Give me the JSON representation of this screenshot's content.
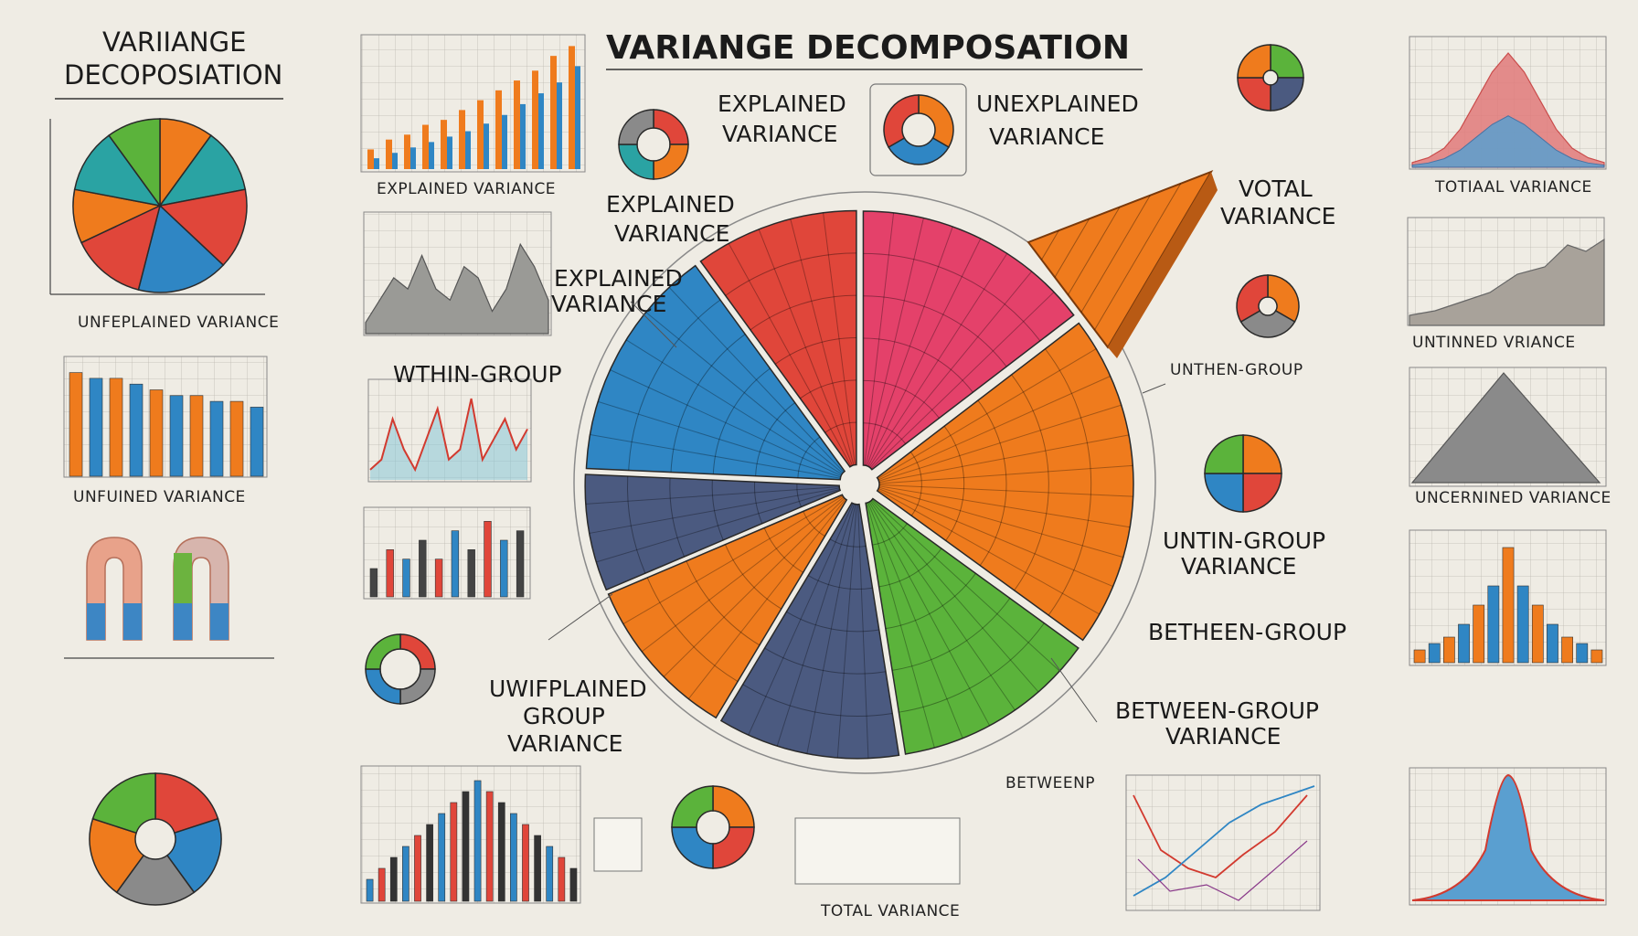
{
  "titles": {
    "main": "VARIANGE DECOMPOSATION",
    "left_line1": "VARIIANGE",
    "left_line2": "DECOPOSIATION"
  },
  "labels": {
    "explained_top": [
      "EXPLAINED",
      "VARIANCE"
    ],
    "unexplained_top": [
      "UNEXPLAINED",
      "VARIANCE"
    ],
    "explained_mid": [
      "EXPLAINED",
      "VARIANCE"
    ],
    "explained_low": [
      "EXPLAINED",
      "VARIANCE"
    ],
    "within_group": "WTHIN-GROUP",
    "votal": [
      "VOTAL",
      "VARIANCE"
    ],
    "unthen_group": "UNTHEN-GROUP",
    "untin_group": [
      "UNTIN-GROUP",
      "VARIANCE"
    ],
    "between_group_1": "BETHEEN-GROUP",
    "between_group_2": [
      "BETWEEN-GROUP",
      "VARIANCE"
    ],
    "uwifplained": [
      "UWIFPLAINED",
      "GROUP",
      "VARIANCE"
    ],
    "betweenp": "BETWEENP",
    "total_bottom": "TOTAL VARIANCE"
  },
  "captions": {
    "left_pie": "UNFEPLAINED VARIANCE",
    "left_bars": "UNFUINED VARIANCE",
    "mini_bar": "EXPLAINED VARIANCE",
    "right_top": "TOTIAAL VARIANCE",
    "right_2": "UNTINNED VRIANCE",
    "right_3": "UNCERNINED VARIANCE"
  },
  "colors": {
    "blue": "#2f86c4",
    "orange": "#ef7b1d",
    "red": "#e0463a",
    "green": "#5bb33b",
    "pink": "#e4416a",
    "slate": "#4b5a80",
    "teal": "#2aa3a3",
    "gray": "#8a8a8a"
  },
  "chart_data": [
    {
      "type": "pie",
      "id": "center-pie",
      "slices": [
        {
          "color": "pink",
          "value": 14.6
        },
        {
          "color": "orange",
          "value": 20.4
        },
        {
          "color": "green",
          "value": 12.5
        },
        {
          "color": "slate",
          "value": 11.1
        },
        {
          "color": "orange",
          "value": 10.0
        },
        {
          "color": "mixed",
          "value": 7.1
        },
        {
          "color": "blue",
          "value": 14.3
        },
        {
          "color": "mixed",
          "value": 10.0
        }
      ]
    },
    {
      "type": "pie",
      "id": "left-pie",
      "slices": [
        {
          "color": "orange",
          "value": 10
        },
        {
          "color": "teal",
          "value": 12
        },
        {
          "color": "red",
          "value": 15
        },
        {
          "color": "blue",
          "value": 17
        },
        {
          "color": "red",
          "value": 14
        },
        {
          "color": "orange",
          "value": 10
        },
        {
          "color": "teal",
          "value": 12
        },
        {
          "color": "green",
          "value": 10
        }
      ]
    },
    {
      "type": "bar",
      "id": "top-mini-bars",
      "series": [
        {
          "name": "",
          "values": [
            1,
            1.5,
            2,
            2.5,
            3,
            3.5,
            4.2,
            5,
            6,
            7,
            8,
            9.5
          ]
        },
        {
          "name": "",
          "values": [
            2,
            3,
            3.5,
            4.5,
            5,
            6,
            7,
            8,
            9,
            10,
            11.5,
            12.5
          ]
        }
      ]
    },
    {
      "type": "bar",
      "id": "left-bars",
      "series": [
        {
          "name": "",
          "values": [
            9,
            8.5,
            8.5,
            8,
            7.5,
            7,
            7,
            6.5,
            6.5,
            6
          ]
        }
      ]
    },
    {
      "type": "area",
      "id": "left-area",
      "values": [
        1,
        3,
        5,
        4,
        7,
        4,
        3,
        6,
        5,
        2,
        4,
        8,
        6,
        3
      ]
    },
    {
      "type": "line",
      "id": "within-line",
      "values": [
        1,
        2,
        6,
        3,
        1,
        4,
        7,
        2,
        3,
        8,
        2,
        4,
        6,
        3,
        5
      ]
    },
    {
      "type": "bar",
      "id": "bottom-bars",
      "series": [
        {
          "name": "",
          "values": [
            2,
            3,
            4,
            5,
            6,
            7,
            8,
            9,
            10,
            11,
            10,
            9,
            8,
            7,
            6,
            5,
            4,
            3
          ]
        }
      ]
    },
    {
      "type": "area",
      "id": "right-normal",
      "values": [
        0.5,
        1,
        2,
        4,
        7,
        10,
        12,
        10,
        7,
        4,
        2,
        1,
        0.5
      ]
    },
    {
      "type": "bar",
      "id": "right-bars",
      "series": [
        {
          "name": "",
          "values": [
            1,
            1.5,
            2,
            3,
            4.5,
            6,
            9,
            6,
            4.5,
            3,
            2,
            1.5,
            1
          ]
        }
      ]
    }
  ]
}
